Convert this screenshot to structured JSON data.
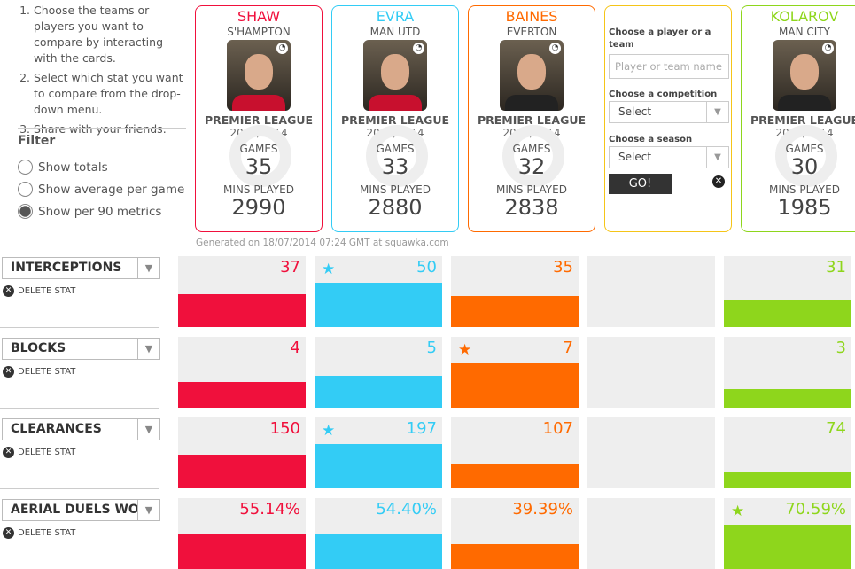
{
  "instructions": [
    "Choose the teams or players you want to compare by interacting with the cards.",
    "Select which stat you want to compare from the drop-down menu.",
    "Share with your friends."
  ],
  "filter": {
    "title": "Filter",
    "options": [
      {
        "label": "Show totals",
        "selected": false
      },
      {
        "label": "Show average per game",
        "selected": false
      },
      {
        "label": "Show per 90 metrics",
        "selected": true
      }
    ]
  },
  "players": [
    {
      "name": "SHAW",
      "team": "S'HAMPTON",
      "competition": "PREMIER LEAGUE",
      "season": "2013/2014",
      "games_label": "GAMES",
      "games": "35",
      "mins_label": "MINS PLAYED",
      "mins": "2990",
      "color": "#f0103c"
    },
    {
      "name": "EVRA",
      "team": "MAN UTD",
      "competition": "PREMIER LEAGUE",
      "season": "2013/2014",
      "games_label": "GAMES",
      "games": "33",
      "mins_label": "MINS PLAYED",
      "mins": "2880",
      "color": "#33ccf5"
    },
    {
      "name": "BAINES",
      "team": "EVERTON",
      "competition": "PREMIER LEAGUE",
      "season": "2013/2014",
      "games_label": "GAMES",
      "games": "32",
      "mins_label": "MINS PLAYED",
      "mins": "2838",
      "color": "#ff6a00"
    },
    null,
    {
      "name": "KOLAROV",
      "team": "MAN CITY",
      "competition": "PREMIER LEAGUE",
      "season": "2013/2014",
      "games_label": "GAMES",
      "games": "30",
      "mins_label": "MINS PLAYED",
      "mins": "1985",
      "color": "#8ed61c"
    }
  ],
  "chooser": {
    "player_label": "Choose a player or a team",
    "player_placeholder": "Player or team name",
    "competition_label": "Choose a competition",
    "competition_value": "Select",
    "season_label": "Choose a season",
    "season_value": "Select",
    "go": "GO!"
  },
  "generated": "Generated on 18/07/2014 07:24 GMT at squawka.com",
  "delete_label": "DELETE STAT",
  "stats": [
    {
      "name": "INTERCEPTIONS",
      "values": [
        "37",
        "50",
        "35",
        null,
        "31"
      ],
      "nums": [
        37,
        50,
        35,
        null,
        31
      ],
      "star": 1
    },
    {
      "name": "BLOCKS",
      "values": [
        "4",
        "5",
        "7",
        null,
        "3"
      ],
      "nums": [
        4,
        5,
        7,
        null,
        3
      ],
      "star": 2
    },
    {
      "name": "CLEARANCES",
      "values": [
        "150",
        "197",
        "107",
        null,
        "74"
      ],
      "nums": [
        150,
        197,
        107,
        null,
        74
      ],
      "star": 1
    },
    {
      "name": "AERIAL DUELS WON",
      "values": [
        "55.14%",
        "54.40%",
        "39.39%",
        null,
        "70.59%"
      ],
      "nums": [
        55.14,
        54.4,
        39.39,
        null,
        70.59
      ],
      "star": 4
    }
  ]
}
